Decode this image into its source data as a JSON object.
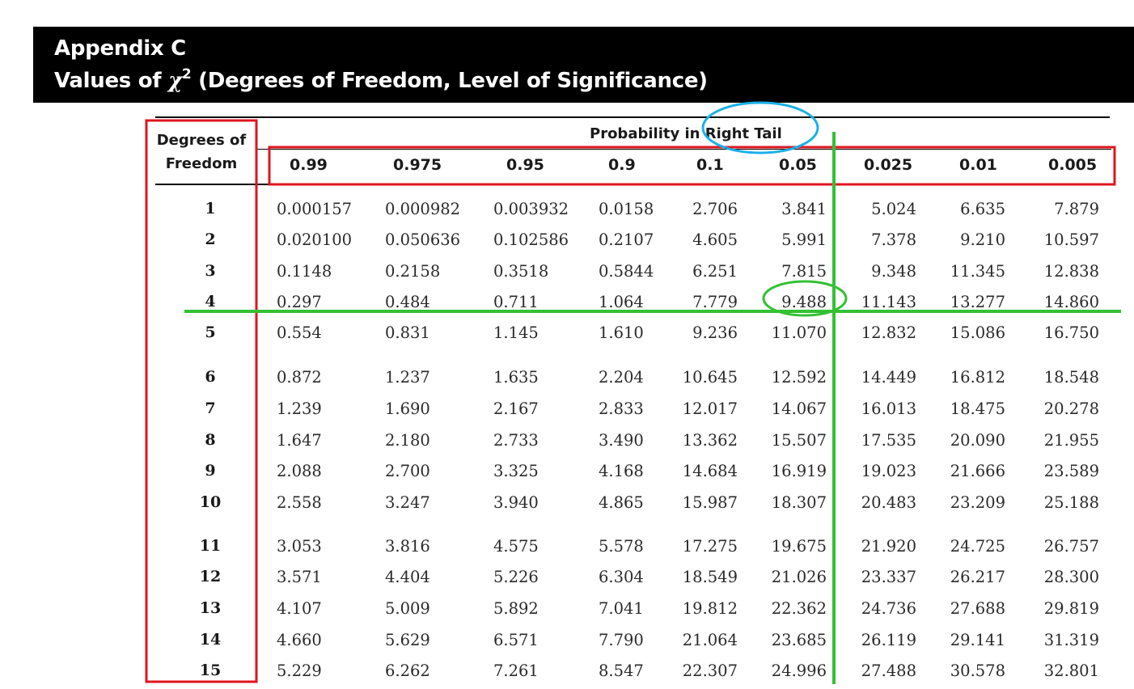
{
  "header": {
    "title": "Appendix C",
    "subtitle_prefix": "Values of ",
    "chi_symbol": "χ",
    "chi_power": "2",
    "subtitle_suffix": " (Degrees of Freedom, Level of Significance)"
  },
  "table": {
    "df_header_line1": "Degrees of",
    "df_header_line2": "Freedom",
    "probability_header": "Probability in Right Tail",
    "columns": [
      "0.99",
      "0.975",
      "0.95",
      "0.9",
      "0.1",
      "0.05",
      "0.025",
      "0.01",
      "0.005"
    ],
    "rows": [
      {
        "df": "1",
        "values": [
          "0.000157",
          "0.000982",
          "0.003932",
          "0.0158",
          "2.706",
          "3.841",
          "5.024",
          "6.635",
          "7.879"
        ]
      },
      {
        "df": "2",
        "values": [
          "0.020100",
          "0.050636",
          "0.102586",
          "0.2107",
          "4.605",
          "5.991",
          "7.378",
          "9.210",
          "10.597"
        ]
      },
      {
        "df": "3",
        "values": [
          "0.1148",
          "0.2158",
          "0.3518",
          "0.5844",
          "6.251",
          "7.815",
          "9.348",
          "11.345",
          "12.838"
        ]
      },
      {
        "df": "4",
        "values": [
          "0.297",
          "0.484",
          "0.711",
          "1.064",
          "7.779",
          "9.488",
          "11.143",
          "13.277",
          "14.860"
        ]
      },
      {
        "df": "5",
        "values": [
          "0.554",
          "0.831",
          "1.145",
          "1.610",
          "9.236",
          "11.070",
          "12.832",
          "15.086",
          "16.750"
        ]
      },
      {
        "df": "6",
        "values": [
          "0.872",
          "1.237",
          "1.635",
          "2.204",
          "10.645",
          "12.592",
          "14.449",
          "16.812",
          "18.548"
        ]
      },
      {
        "df": "7",
        "values": [
          "1.239",
          "1.690",
          "2.167",
          "2.833",
          "12.017",
          "14.067",
          "16.013",
          "18.475",
          "20.278"
        ]
      },
      {
        "df": "8",
        "values": [
          "1.647",
          "2.180",
          "2.733",
          "3.490",
          "13.362",
          "15.507",
          "17.535",
          "20.090",
          "21.955"
        ]
      },
      {
        "df": "9",
        "values": [
          "2.088",
          "2.700",
          "3.325",
          "4.168",
          "14.684",
          "16.919",
          "19.023",
          "21.666",
          "23.589"
        ]
      },
      {
        "df": "10",
        "values": [
          "2.558",
          "3.247",
          "3.940",
          "4.865",
          "15.987",
          "18.307",
          "20.483",
          "23.209",
          "25.188"
        ]
      },
      {
        "df": "11",
        "values": [
          "3.053",
          "3.816",
          "4.575",
          "5.578",
          "17.275",
          "19.675",
          "21.920",
          "24.725",
          "26.757"
        ]
      },
      {
        "df": "12",
        "values": [
          "3.571",
          "4.404",
          "5.226",
          "6.304",
          "18.549",
          "21.026",
          "23.337",
          "26.217",
          "28.300"
        ]
      },
      {
        "df": "13",
        "values": [
          "4.107",
          "5.009",
          "5.892",
          "7.041",
          "19.812",
          "22.362",
          "24.736",
          "27.688",
          "29.819"
        ]
      },
      {
        "df": "14",
        "values": [
          "4.660",
          "5.629",
          "6.571",
          "7.790",
          "21.064",
          "23.685",
          "26.119",
          "29.141",
          "31.319"
        ]
      },
      {
        "df": "15",
        "values": [
          "5.229",
          "6.262",
          "7.261",
          "8.547",
          "22.307",
          "24.996",
          "27.488",
          "30.578",
          "32.801"
        ]
      }
    ]
  },
  "annotations": {
    "df_column_box_color": "#e0141e",
    "probability_row_box_color": "#e0141e",
    "right_tail_circle_color": "#1ab0e8",
    "guide_lines_color": "#33c133",
    "highlight_circle_color": "#33c133",
    "highlighted_df": "4",
    "highlighted_column": "0.05",
    "highlighted_value": "9.488"
  }
}
